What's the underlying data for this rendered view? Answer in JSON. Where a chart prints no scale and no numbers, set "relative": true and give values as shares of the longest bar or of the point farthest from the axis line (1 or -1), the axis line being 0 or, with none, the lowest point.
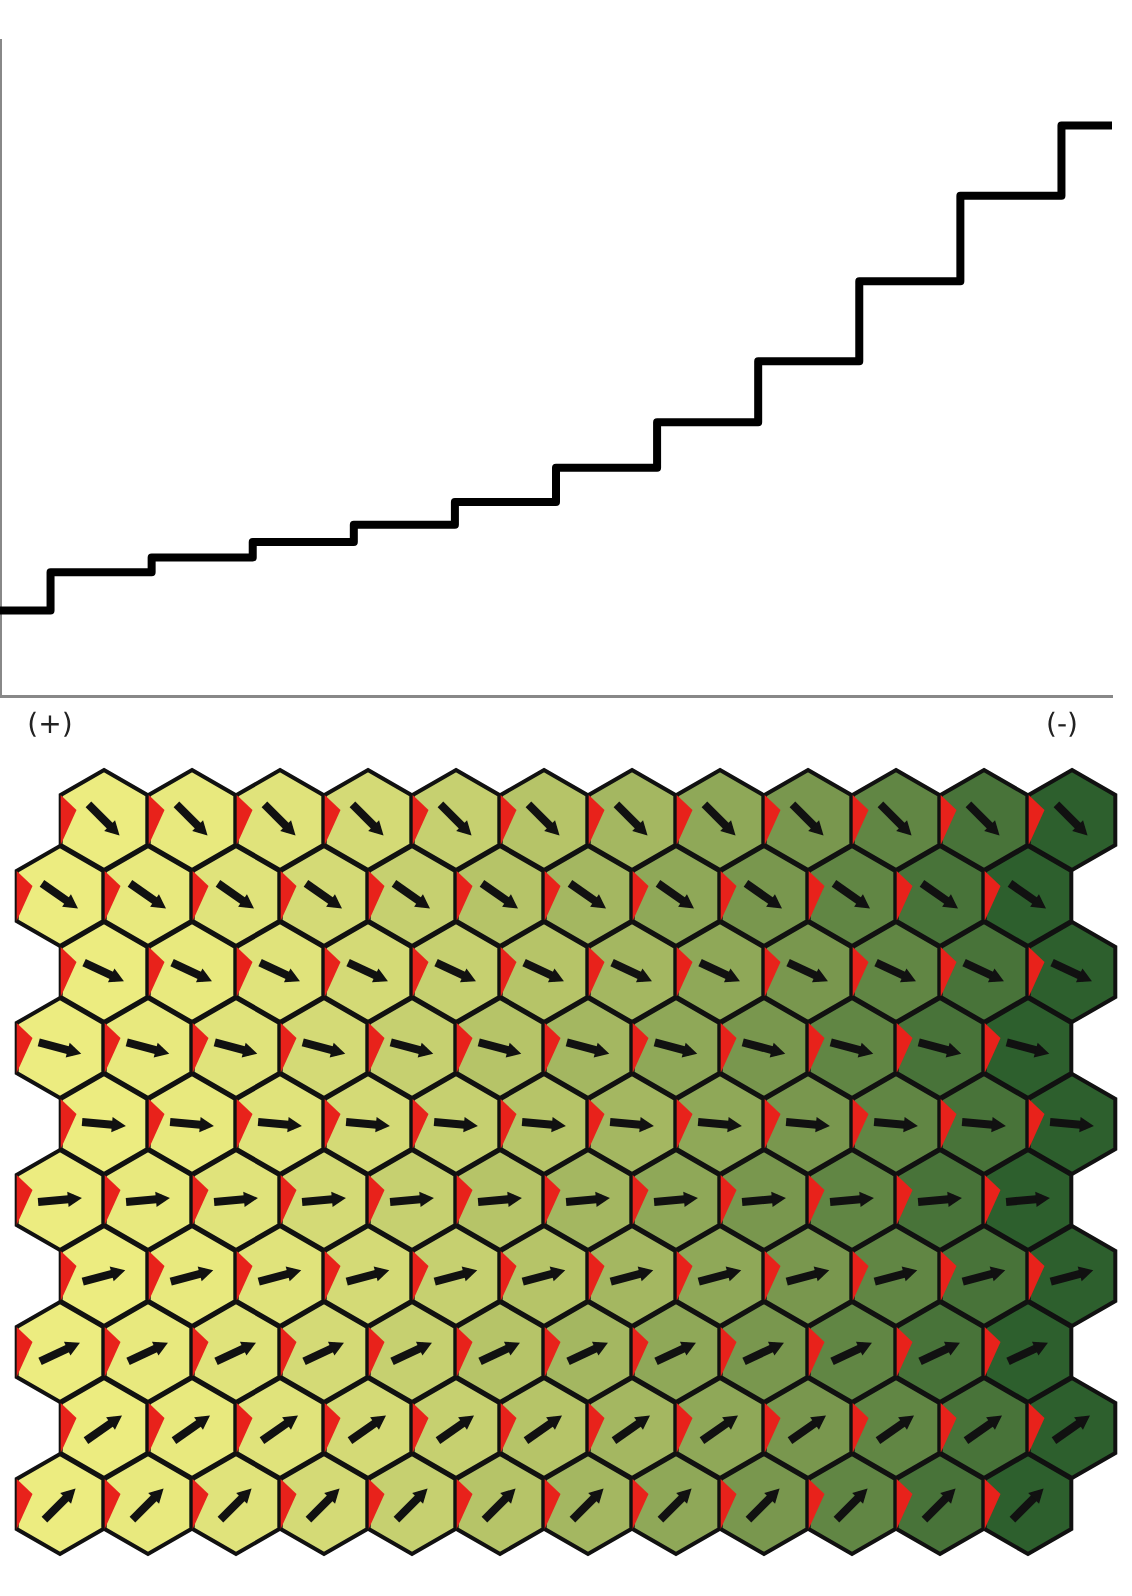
{
  "chart_data": {
    "type": "step",
    "relative": true,
    "categories": [
      null,
      null,
      null,
      null,
      null,
      null,
      null,
      null,
      null,
      null,
      null,
      null
    ],
    "series": [
      {
        "color": "#000000",
        "values": [
          0.15,
          0.217,
          0.243,
          0.27,
          0.3,
          0.34,
          0.4,
          0.48,
          0.587,
          0.727,
          0.877,
          1
        ]
      }
    ],
    "annotations": [
      "(+)",
      "(-)"
    ],
    "grid": false,
    "legend": false,
    "marker": "none"
  }
}
